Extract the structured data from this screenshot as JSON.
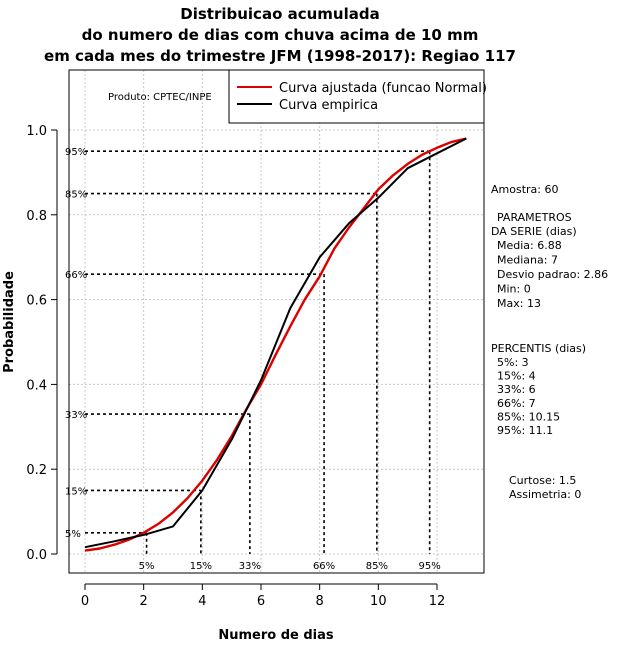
{
  "chart_data": {
    "type": "line",
    "title": [
      "Distribuicao acumulada",
      "do numero de dias com chuva acima de 10 mm",
      "em cada mes do trimestre JFM (1998-2017): Regiao 117"
    ],
    "xlabel": "Numero de dias",
    "ylabel": "Probabilidade",
    "xlim": [
      0,
      13
    ],
    "ylim": [
      0,
      1
    ],
    "x_ticks": [
      0,
      2,
      4,
      6,
      8,
      10,
      12
    ],
    "y_ticks": [
      0.0,
      0.2,
      0.4,
      0.6,
      0.8,
      1.0
    ],
    "y_tick_labels": [
      "0.0",
      "0.2",
      "0.4",
      "0.6",
      "0.8",
      "1.0"
    ],
    "grid": true,
    "legend_position": "top-right",
    "series": [
      {
        "name": "Curva ajustada (funcao Normal)",
        "color": "#dd0000",
        "type": "normal_cdf",
        "mean": 6.88,
        "sd": 2.86,
        "x": [
          0,
          0.5,
          1,
          1.5,
          2,
          2.5,
          3,
          3.5,
          4,
          4.5,
          5,
          5.5,
          6,
          6.5,
          7,
          7.5,
          8,
          8.5,
          9,
          9.5,
          10,
          10.5,
          11,
          11.5,
          12,
          12.5,
          13
        ],
        "values": [
          0.008,
          0.013,
          0.022,
          0.034,
          0.05,
          0.071,
          0.098,
          0.132,
          0.173,
          0.222,
          0.278,
          0.341,
          0.4,
          0.47,
          0.537,
          0.601,
          0.655,
          0.72,
          0.77,
          0.815,
          0.86,
          0.893,
          0.92,
          0.942,
          0.958,
          0.972,
          0.98
        ]
      },
      {
        "name": "Curva empirica",
        "color": "#000000",
        "type": "empirical",
        "x": [
          0,
          1,
          2,
          3,
          4,
          5,
          6,
          7,
          8,
          9,
          10,
          11,
          12,
          13
        ],
        "values": [
          0.016,
          0.03,
          0.045,
          0.065,
          0.15,
          0.27,
          0.41,
          0.58,
          0.7,
          0.78,
          0.84,
          0.91,
          0.945,
          0.98
        ]
      }
    ],
    "percentile_markers": [
      {
        "label": "5%",
        "p": 0.05,
        "x": 2.1
      },
      {
        "label": "15%",
        "p": 0.15,
        "x": 3.95
      },
      {
        "label": "33%",
        "p": 0.33,
        "x": 5.62
      },
      {
        "label": "66%",
        "p": 0.66,
        "x": 8.15
      },
      {
        "label": "85%",
        "p": 0.85,
        "x": 9.95
      },
      {
        "label": "95%",
        "p": 0.95,
        "x": 11.75
      }
    ]
  },
  "producer_label": "Produto: CPTEC/INPE",
  "stats_panel": {
    "sample": "Amostra: 60",
    "params_title_1": "PARAMETROS",
    "params_title_2": "DA SERIE (dias)",
    "params": [
      "Media: 6.88",
      "Mediana: 7",
      "Desvio padrao: 2.86",
      "Min: 0",
      "Max: 13"
    ],
    "percentis_title": "PERCENTIS (dias)",
    "percentis": [
      "5%: 3",
      "15%: 4",
      "33%: 6",
      "66%: 7",
      "85%: 10.15",
      "95%: 11.1"
    ],
    "kurtosis": "Curtose: 1.5",
    "skewness": "Assimetria: 0"
  }
}
